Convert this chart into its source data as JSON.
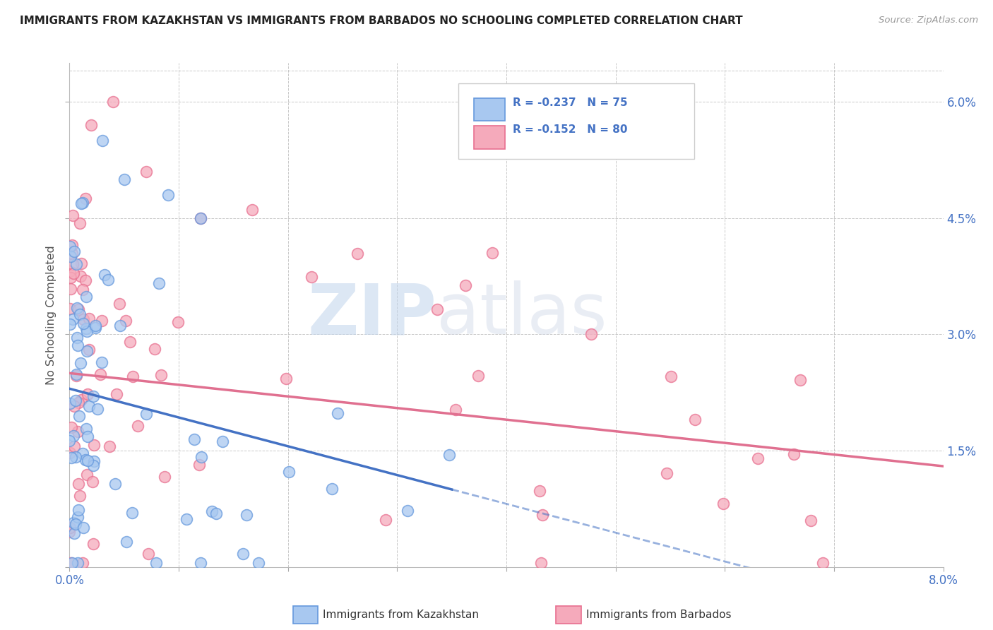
{
  "title": "IMMIGRANTS FROM KAZAKHSTAN VS IMMIGRANTS FROM BARBADOS NO SCHOOLING COMPLETED CORRELATION CHART",
  "source": "Source: ZipAtlas.com",
  "ylabel": "No Schooling Completed",
  "legend_r1": "R = -0.237",
  "legend_n1": "N = 75",
  "legend_r2": "R = -0.152",
  "legend_n2": "N = 80",
  "color_kaz": "#A8C8F0",
  "color_bar": "#F5AABB",
  "color_kaz_edge": "#6699DD",
  "color_bar_edge": "#E87090",
  "color_kaz_line": "#4472C4",
  "color_bar_line": "#E07090",
  "watermark_zip": "ZIP",
  "watermark_atlas": "atlas",
  "background_color": "#FFFFFF",
  "grid_color": "#BBBBBB",
  "title_color": "#222222",
  "source_color": "#999999",
  "axis_label_color": "#4472C4",
  "ylabel_color": "#555555"
}
